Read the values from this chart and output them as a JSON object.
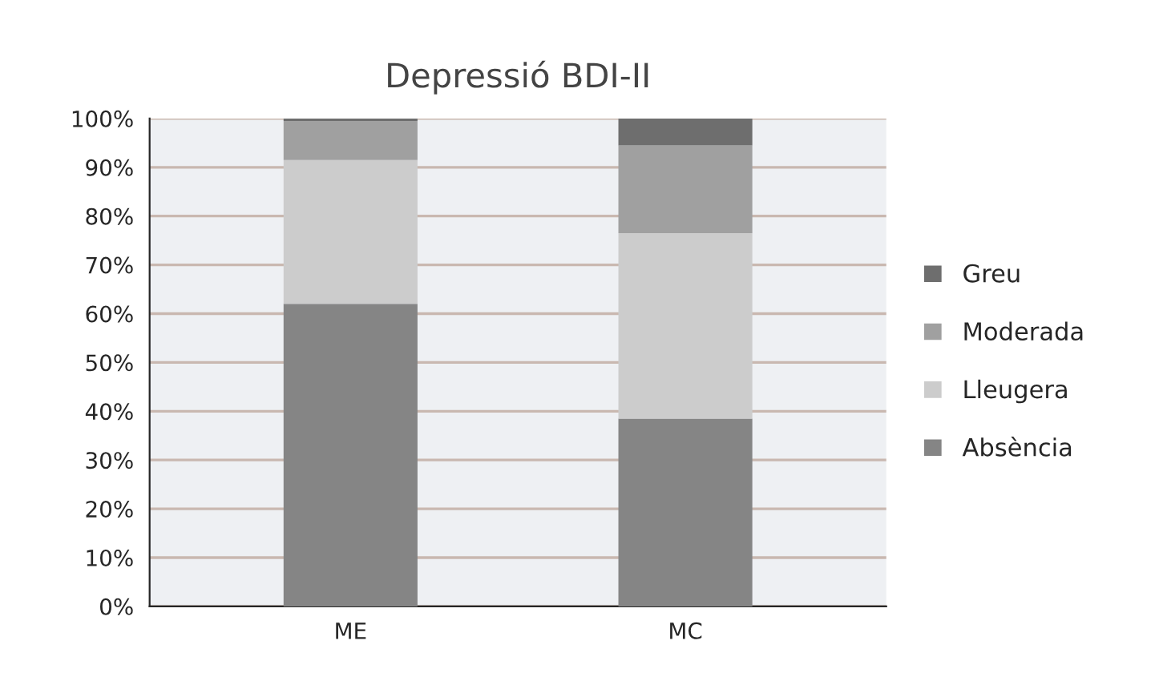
{
  "chart_data": {
    "type": "bar",
    "title": "Depressió BDI-II",
    "stacked": true,
    "categories": [
      "ME",
      "MC"
    ],
    "series": [
      {
        "name": "Absència",
        "color": "#858585",
        "values": [
          62,
          38.5
        ]
      },
      {
        "name": "Lleugera",
        "color": "#cccccc",
        "values": [
          29.5,
          38
        ]
      },
      {
        "name": "Moderada",
        "color": "#a0a0a0",
        "values": [
          8,
          18
        ]
      },
      {
        "name": "Greu",
        "color": "#6e6e6e",
        "values": [
          0.5,
          5.5
        ]
      }
    ],
    "ylim": [
      0,
      100
    ],
    "yticks": [
      {
        "value": 0,
        "label": "0%"
      },
      {
        "value": 10,
        "label": "10%"
      },
      {
        "value": 20,
        "label": "20%"
      },
      {
        "value": 30,
        "label": "30%"
      },
      {
        "value": 40,
        "label": "40%"
      },
      {
        "value": 50,
        "label": "50%"
      },
      {
        "value": 60,
        "label": "60%"
      },
      {
        "value": 70,
        "label": "70%"
      },
      {
        "value": 80,
        "label": "80%"
      },
      {
        "value": 90,
        "label": "90%"
      },
      {
        "value": 100,
        "label": "100%"
      }
    ],
    "grid": "y",
    "legend": "right"
  }
}
